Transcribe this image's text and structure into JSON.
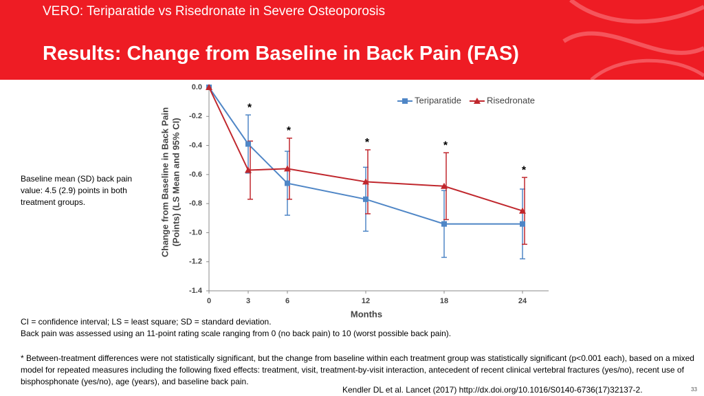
{
  "header": {
    "subtitle": "VERO: Teriparatide vs Risedronate in Severe Osteoporosis",
    "title": "Results: Change from Baseline in Back Pain (FAS)"
  },
  "side_note": "Baseline mean (SD) back pain value: 4.5 (2.9) points in both treatment groups.",
  "footnotes": [
    "CI = confidence interval; LS = least square; SD = standard deviation.",
    "Back pain was assessed using an 11-point rating scale ranging from 0 (no back pain) to 10 (worst possible back pain).",
    "* Between-treatment differences were not statistically significant, but the change from baseline within each treatment group was statistically significant (p<0.001 each), based on a mixed model for repeated measures including the following fixed effects: treatment, visit, treatment-by-visit interaction, antecedent of recent clinical vertebral fractures (yes/no), recent use of bisphosphonate (yes/no), age (years), and baseline back pain."
  ],
  "citation": "Kendler DL et al. Lancet (2017) http://dx.doi.org/10.1016/S0140-6736(17)32137-2.",
  "page_number": "33",
  "chart_data": {
    "type": "line",
    "x": [
      0,
      3,
      6,
      12,
      18,
      24
    ],
    "xlim": [
      0,
      26
    ],
    "xticks": [
      0,
      3,
      6,
      12,
      18,
      24
    ],
    "ylim": [
      -1.4,
      0
    ],
    "yticks": [
      {
        "value": 0,
        "label": "0.0"
      },
      -0.2,
      -0.4,
      -0.6,
      -0.8,
      {
        "value": -1,
        "label": "-1.0"
      },
      -1.2,
      -1.4
    ],
    "xlabel": "Months",
    "ylabel": [
      "Change from Baseline in Back Pain",
      "(Points)  (LS Mean and 95% CI)"
    ],
    "legend": "upper right",
    "series": [
      {
        "name": "Teriparatide",
        "color": "#4f86c6",
        "marker": "square",
        "values": [
          0,
          -0.39,
          -0.66,
          -0.77,
          -0.94,
          -0.94
        ],
        "errors": [
          null,
          0.2,
          0.22,
          0.22,
          0.23,
          0.24
        ]
      },
      {
        "name": "Risedronate",
        "color": "#c0272d",
        "marker": "triangle",
        "values": [
          0,
          -0.57,
          -0.56,
          -0.65,
          -0.68,
          -0.85
        ],
        "errors": [
          null,
          0.2,
          0.21,
          0.22,
          0.23,
          0.23
        ]
      }
    ],
    "annotations": [
      {
        "text": "*",
        "x": 3
      },
      {
        "text": "*",
        "x": 6
      },
      {
        "text": "*",
        "x": 12
      },
      {
        "text": "*",
        "x": 18
      },
      {
        "text": "*",
        "x": 24
      }
    ]
  }
}
